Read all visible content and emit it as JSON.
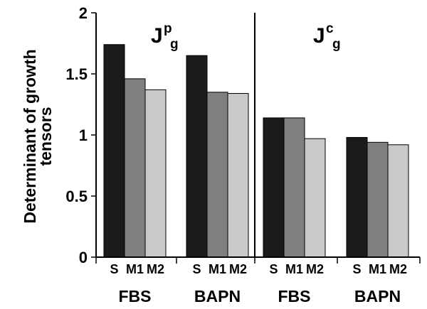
{
  "chart_data": {
    "type": "bar",
    "ylabel_lines": [
      "Determinant of growth",
      "tensors"
    ],
    "ylim": [
      0,
      2
    ],
    "yticks": [
      "0",
      "0.5",
      "1",
      "1.5",
      "2"
    ],
    "ytick_values": [
      0,
      0.5,
      1,
      1.5,
      2
    ],
    "series_labels": [
      "S",
      "M1",
      "M2"
    ],
    "colors": [
      "#1b1b1b",
      "#7f7f7f",
      "#c9c9c9"
    ],
    "panels": [
      {
        "title": {
          "main": "J",
          "sup": "p",
          "sub": "g"
        },
        "groups": [
          {
            "label": "FBS",
            "values": [
              1.74,
              1.46,
              1.37
            ]
          },
          {
            "label": "BAPN",
            "values": [
              1.65,
              1.35,
              1.34
            ]
          }
        ]
      },
      {
        "title": {
          "main": "J",
          "sup": "c",
          "sub": "g"
        },
        "groups": [
          {
            "label": "FBS",
            "values": [
              1.14,
              1.14,
              0.97
            ]
          },
          {
            "label": "BAPN",
            "values": [
              0.98,
              0.94,
              0.92
            ]
          }
        ]
      }
    ]
  }
}
